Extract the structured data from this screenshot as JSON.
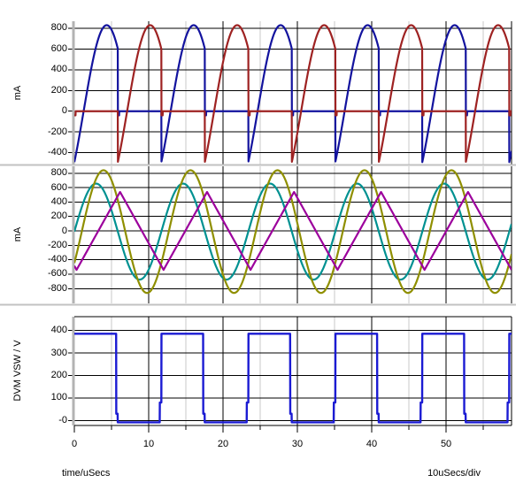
{
  "figure": {
    "background": "#ffffff",
    "x_axis": {
      "label": "time/uSecs",
      "per_div_label": "10uSecs/div",
      "range": [
        0,
        58.8
      ],
      "major_ticks": [
        0,
        10,
        20,
        30,
        40,
        50
      ],
      "major_tick_labels": [
        "0",
        "10",
        "20",
        "30",
        "40",
        "50"
      ],
      "minor_ticks": [
        5,
        15,
        25,
        35,
        45,
        55
      ]
    },
    "grid": {
      "major_color": "#000000",
      "minor_color": "#c9c9c9",
      "axis_bar_color": "#b3b3b3",
      "separator_color": "#c2c2c2",
      "border_color": "#000000"
    }
  },
  "chart_data": [
    {
      "type": "line",
      "ylabel": "mA",
      "ylim": [
        -510,
        868
      ],
      "yticks": [
        800,
        600,
        400,
        200,
        0,
        -200,
        -400
      ],
      "ytick_labels": [
        "800",
        "600",
        "400",
        "200",
        "0",
        "-200",
        "-400"
      ],
      "xlabel": "time/uSecs",
      "grid": true,
      "series": [
        {
          "name": "navy-rectified-pulse-current",
          "color": "#13139e",
          "shape": "clamped_half_sine",
          "period": 11.7,
          "conduct_start": 0,
          "peak": 830,
          "zero_cross": 1.25,
          "half_sine_width": 6.2,
          "end_level": 600,
          "notch_level": -40,
          "notch_len": 0.18
        },
        {
          "name": "red-rectified-pulse-current",
          "color": "#9e2222",
          "shape": "clamped_half_sine",
          "period": 11.7,
          "conduct_start": 5.85,
          "peak": 830,
          "zero_cross": 1.25,
          "half_sine_width": 6.2,
          "end_level": 600,
          "notch_level": -40,
          "notch_len": 0.18
        }
      ]
    },
    {
      "type": "line",
      "ylabel": "mA",
      "ylim": [
        -1005,
        895
      ],
      "yticks": [
        800,
        600,
        400,
        200,
        0,
        -200,
        -400,
        -600,
        -800
      ],
      "ytick_labels": [
        "800",
        "600",
        "400",
        "200",
        "0",
        "-200",
        "-400",
        "-600",
        "-800"
      ],
      "xlabel": "time/uSecs",
      "grid": true,
      "series": [
        {
          "name": "teal-sine-current",
          "color": "#009191",
          "shape": "sine",
          "amplitude": 665,
          "offset": -10,
          "period": 11.7,
          "t_shift": 0
        },
        {
          "name": "olive-sine-current",
          "color": "#8f8f00",
          "shape": "sine",
          "amplitude": 850,
          "offset": -10,
          "period": 11.7,
          "t_shift": 1.0
        },
        {
          "name": "magenta-triangle-current",
          "color": "#9c009c",
          "shape": "triangle",
          "min": -540,
          "max": 540,
          "period": 11.7,
          "t_min": 0.3
        }
      ]
    },
    {
      "type": "line",
      "ylabel": "DVM VSW / V",
      "ylim": [
        -22,
        461
      ],
      "yticks": [
        400,
        300,
        200,
        100,
        0
      ],
      "ytick_labels": [
        "400",
        "300",
        "200",
        "100",
        "-0"
      ],
      "xlabel": "time/uSecs",
      "grid": true,
      "series": [
        {
          "name": "blue-switch-node-square-voltage",
          "color": "#1b1bd3",
          "shape": "square",
          "high": 385,
          "low": -8,
          "period": 11.7,
          "high_start": -0.22,
          "rise_step_level": 80,
          "rise_step_len": 0.22,
          "fall_step_level": 30,
          "fall_step_len": 0.2
        }
      ]
    }
  ]
}
